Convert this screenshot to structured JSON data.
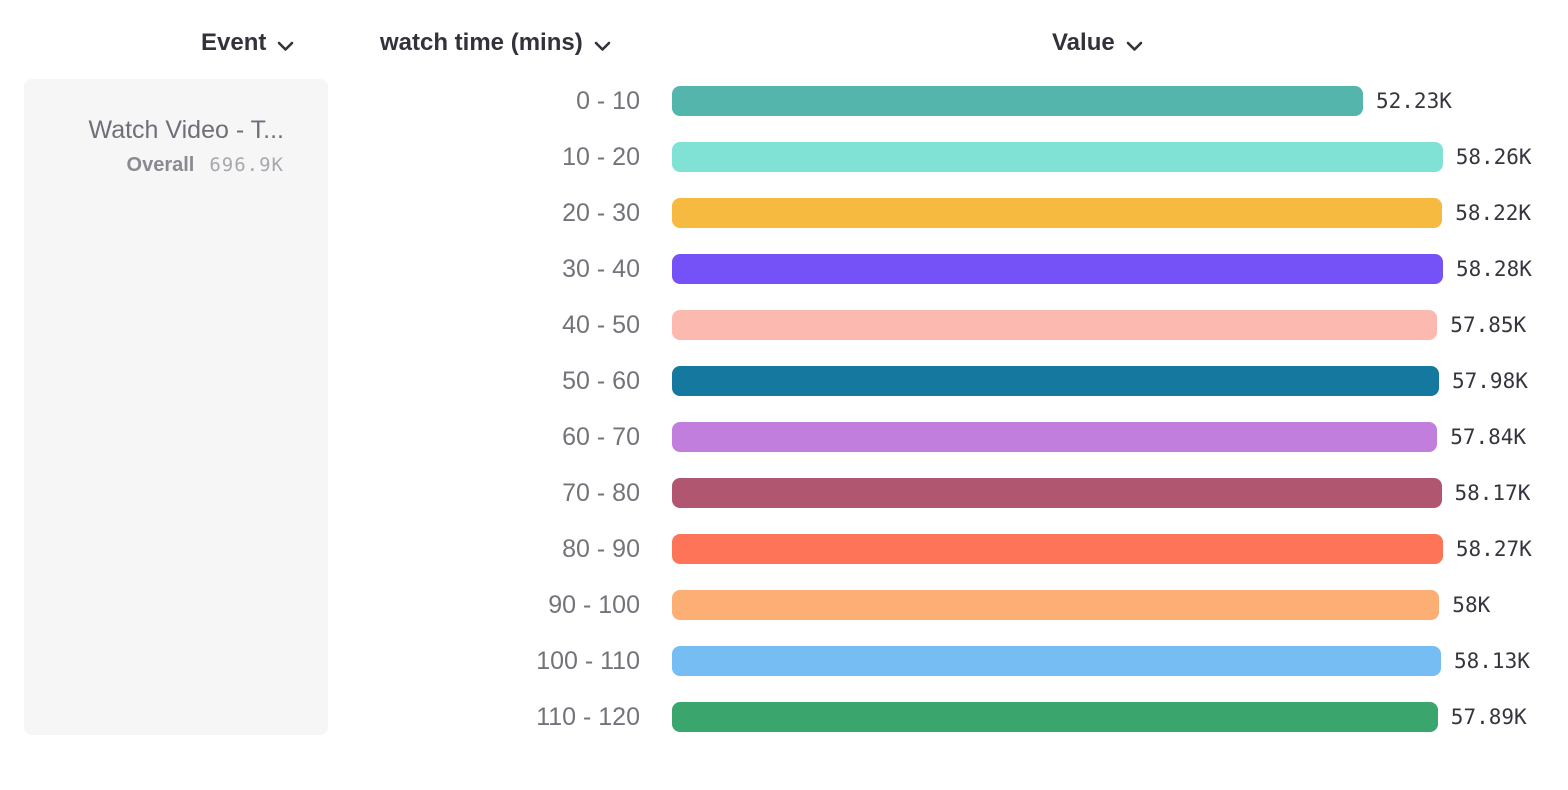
{
  "header": {
    "event_label": "Event",
    "breakdown_label": "watch time (mins)",
    "value_label": "Value"
  },
  "event_card": {
    "title": "Watch Video - T...",
    "overall_label": "Overall",
    "overall_value": "696.9K"
  },
  "chart_data": {
    "type": "bar",
    "orientation": "horizontal",
    "title": "",
    "xlabel": "Value",
    "ylabel": "watch time (mins)",
    "categories": [
      "0 - 10",
      "10 - 20",
      "20 - 30",
      "30 - 40",
      "40 - 50",
      "50 - 60",
      "60 - 70",
      "70 - 80",
      "80 - 90",
      "90 - 100",
      "100 - 110",
      "110 - 120"
    ],
    "values": [
      52230,
      58260,
      58220,
      58280,
      57850,
      57980,
      57840,
      58170,
      58270,
      58000,
      58130,
      57890
    ],
    "value_labels": [
      "52.23K",
      "58.26K",
      "58.22K",
      "58.28K",
      "57.85K",
      "57.98K",
      "57.84K",
      "58.17K",
      "58.27K",
      "58K",
      "58.13K",
      "57.89K"
    ],
    "bar_colors": [
      "#54b5ac",
      "#7fe2d4",
      "#f6ba41",
      "#7452f7",
      "#fcb9b0",
      "#15789e",
      "#c17edc",
      "#b15670",
      "#fd7458",
      "#fcae75",
      "#76bdf4",
      "#3ba56e"
    ],
    "xlim": [
      0,
      58280
    ],
    "grid": false,
    "legend": false
  }
}
